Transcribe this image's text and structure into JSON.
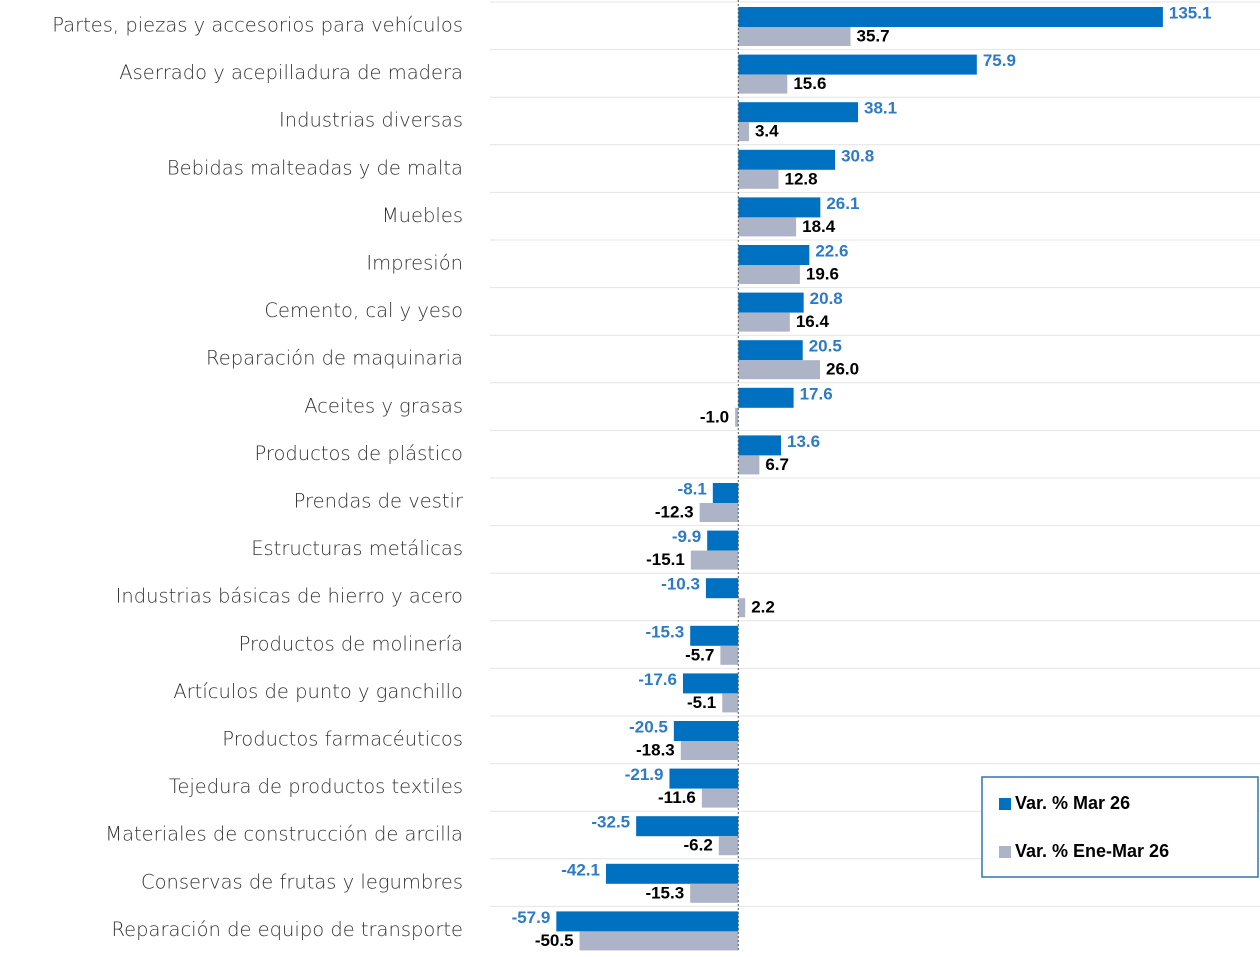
{
  "chart_data": {
    "type": "barh",
    "categories": [
      "Partes, piezas y accesorios para vehículos",
      "Aserrado y acepilladura de madera",
      "Industrias diversas",
      "Bebidas malteadas y de malta",
      "Muebles",
      "Impresión",
      "Cemento, cal y yeso",
      "Reparación de maquinaria",
      "Aceites y grasas",
      "Productos de plástico",
      "Prendas de vestir",
      "Estructuras metálicas",
      "Industrias básicas de hierro y acero",
      "Productos de molinería",
      "Artículos de punto y ganchillo",
      "Productos farmacéuticos",
      "Tejedura de productos textiles",
      "Materiales de construcción de arcilla",
      "Conservas de frutas y legumbres",
      "Reparación de equipo de transporte"
    ],
    "series": [
      {
        "name": "Var. % Mar 26",
        "color": "#0070c0",
        "label_color": "#2e7bc4",
        "values": [
          135.1,
          75.9,
          38.1,
          30.8,
          26.1,
          22.6,
          20.8,
          20.5,
          17.6,
          13.6,
          -8.1,
          -9.9,
          -10.3,
          -15.3,
          -17.6,
          -20.5,
          -21.9,
          -32.5,
          -42.1,
          -57.9
        ],
        "value_labels": [
          "135.1",
          "75.9",
          "38.1",
          "30.8",
          "26.1",
          "22.6",
          "20.8",
          "20.5",
          "17.6",
          "13.6",
          "-8.1",
          "-9.9",
          "-10.3",
          "-15.3",
          "-17.6",
          "-20.5",
          "-21.9",
          "-32.5",
          "-42.1",
          "-57.9"
        ]
      },
      {
        "name": "Var. % Ene-Mar 26",
        "color": "#adb4c8",
        "label_color": "#000000",
        "values": [
          35.7,
          15.6,
          3.4,
          12.8,
          18.4,
          19.6,
          16.4,
          26.0,
          -1.0,
          6.7,
          -12.3,
          -15.1,
          2.2,
          -5.7,
          -5.1,
          -18.3,
          -11.6,
          -6.2,
          -15.3,
          -50.5
        ],
        "value_labels": [
          "35.7",
          "15.6",
          "3.4",
          "12.8",
          "18.4",
          "19.6",
          "16.4",
          "26.0",
          "-1.0",
          "6.7",
          "-12.3",
          "-15.1",
          "2.2",
          "-5.7",
          "-5.1",
          "-18.3",
          "-11.6",
          "-6.2",
          "-15.3",
          "-50.5"
        ]
      }
    ],
    "xlim": [
      -79,
      166
    ],
    "legend": "lower right"
  }
}
